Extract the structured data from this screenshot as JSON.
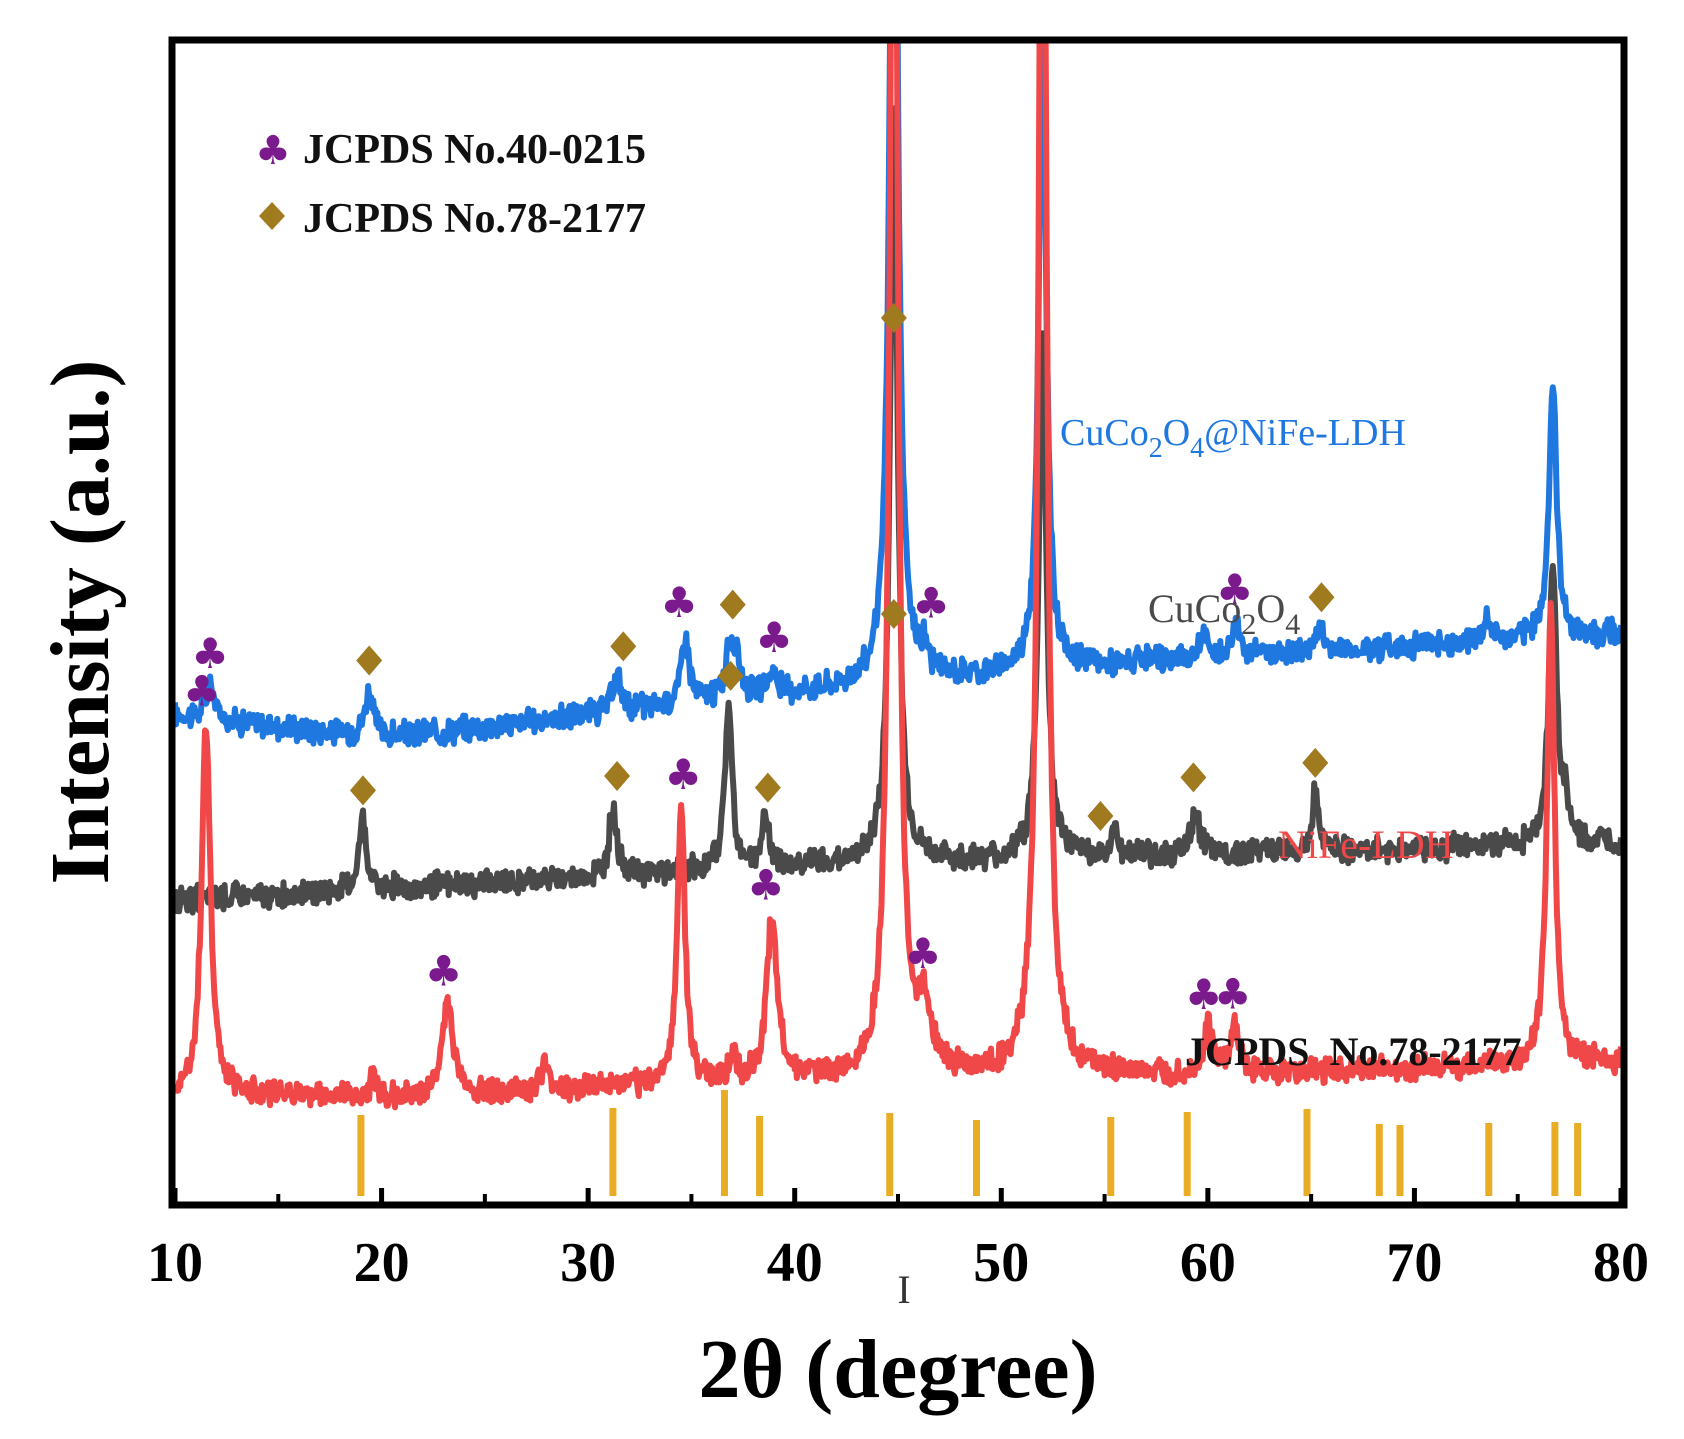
{
  "chart_data": {
    "type": "line",
    "title": "",
    "xlabel": "2θ (degree)",
    "ylabel": "Intensity (a.u.)",
    "xlim": [
      10,
      80
    ],
    "x_ticks": [
      10,
      20,
      30,
      40,
      50,
      60,
      70,
      80
    ],
    "y_ticks": [],
    "grid": false,
    "legend_position": "top-left",
    "stray_glyph": "I",
    "colors": {
      "blue": "#1f77e0",
      "gray": "#4a4a4a",
      "red": "#f04848",
      "club": "#7a1a8c",
      "diamond": "#a07a1e",
      "ref_bar": "#e8ad24"
    },
    "legend": [
      {
        "symbol": "club",
        "label": "JCPDS No.40-0215"
      },
      {
        "symbol": "diamond",
        "label": "JCPDS No.78-2177"
      }
    ],
    "series": [
      {
        "name": "CuCo2O4@NiFe-LDH",
        "label_parts": [
          "CuCo",
          "2",
          "O",
          "4",
          "@NiFe-LDH"
        ],
        "color": "#1f77e0",
        "baseline": [
          [
            10,
            0.42
          ],
          [
            20,
            0.4
          ],
          [
            40,
            0.44
          ],
          [
            60,
            0.47
          ],
          [
            80,
            0.49
          ]
        ],
        "peaks": [
          [
            11.7,
            0.03,
            0.25
          ],
          [
            19.4,
            0.04,
            0.25
          ],
          [
            31.4,
            0.03,
            0.25
          ],
          [
            34.7,
            0.06,
            0.22
          ],
          [
            36.9,
            0.05,
            0.25
          ],
          [
            37.3,
            0.02,
            0.2
          ],
          [
            38.9,
            0.02,
            0.2
          ],
          [
            44.8,
            0.95,
            0.22
          ],
          [
            46.3,
            0.02,
            0.2
          ],
          [
            52.0,
            0.55,
            0.22
          ],
          [
            59.8,
            0.02,
            0.2
          ],
          [
            61.4,
            0.03,
            0.22
          ],
          [
            65.4,
            0.02,
            0.22
          ],
          [
            73.5,
            0.02,
            0.22
          ],
          [
            76.7,
            0.22,
            0.22
          ]
        ]
      },
      {
        "name": "CuCo2O4",
        "label_parts": [
          "CuCo",
          "2",
          "O",
          "4",
          ""
        ],
        "color": "#4a4a4a",
        "baseline": [
          [
            10,
            0.26
          ],
          [
            20,
            0.27
          ],
          [
            40,
            0.29
          ],
          [
            60,
            0.3
          ],
          [
            80,
            0.31
          ]
        ],
        "peaks": [
          [
            19.1,
            0.06,
            0.22
          ],
          [
            31.2,
            0.06,
            0.22
          ],
          [
            36.8,
            0.14,
            0.22
          ],
          [
            38.6,
            0.04,
            0.22
          ],
          [
            44.8,
            0.65,
            0.22
          ],
          [
            52.0,
            0.45,
            0.22
          ],
          [
            55.5,
            0.02,
            0.22
          ],
          [
            59.4,
            0.04,
            0.22
          ],
          [
            65.2,
            0.05,
            0.22
          ],
          [
            76.7,
            0.24,
            0.22
          ],
          [
            77.3,
            0.03,
            0.2
          ]
        ]
      },
      {
        "name": "NiFe-LDH",
        "label_parts": [
          "NiFe-LDH",
          "",
          "",
          "",
          ""
        ],
        "color": "#f04848",
        "baseline": [
          [
            10,
            0.095
          ],
          [
            20,
            0.09
          ],
          [
            40,
            0.105
          ],
          [
            60,
            0.11
          ],
          [
            80,
            0.12
          ]
        ],
        "peaks": [
          [
            11.5,
            0.32,
            0.25
          ],
          [
            19.6,
            0.02,
            0.2
          ],
          [
            23.2,
            0.08,
            0.3
          ],
          [
            27.9,
            0.02,
            0.2
          ],
          [
            34.5,
            0.24,
            0.22
          ],
          [
            37.0,
            0.02,
            0.2
          ],
          [
            38.9,
            0.14,
            0.3
          ],
          [
            44.8,
            1.3,
            0.22
          ],
          [
            46.3,
            0.05,
            0.4
          ],
          [
            52.0,
            1.3,
            0.22
          ],
          [
            60.0,
            0.04,
            0.25
          ],
          [
            61.3,
            0.04,
            0.25
          ],
          [
            76.6,
            0.39,
            0.22
          ]
        ]
      }
    ],
    "markers": [
      {
        "series": "CuCo2O4@NiFe-LDH",
        "symbol": "club",
        "x": [
          11.7,
          34.4,
          39.0,
          46.6,
          61.3
        ]
      },
      {
        "series": "CuCo2O4@NiFe-LDH",
        "symbol": "diamond",
        "x": [
          19.4,
          31.7,
          37.0,
          44.8,
          65.5
        ]
      },
      {
        "series": "CuCo2O4",
        "symbol": "diamond",
        "x": [
          19.1,
          31.4,
          36.9,
          38.7,
          44.8,
          54.8,
          59.3,
          65.2
        ]
      },
      {
        "series": "NiFe-LDH",
        "symbol": "club",
        "x": [
          11.3,
          23.0,
          34.6,
          38.6,
          46.2,
          59.8,
          61.2
        ]
      }
    ],
    "reference": {
      "label": "JCPDS  No.78-2177",
      "color": "#e8ad24",
      "positions": [
        19.0,
        31.2,
        36.6,
        38.3,
        44.6,
        48.8,
        55.3,
        59.0,
        64.8,
        68.3,
        69.3,
        73.6,
        76.8,
        77.9
      ],
      "intensities": [
        0.57,
        0.64,
        0.82,
        0.56,
        0.59,
        0.52,
        0.55,
        0.6,
        0.63,
        0.48,
        0.47,
        0.49,
        0.5,
        0.49
      ]
    }
  }
}
